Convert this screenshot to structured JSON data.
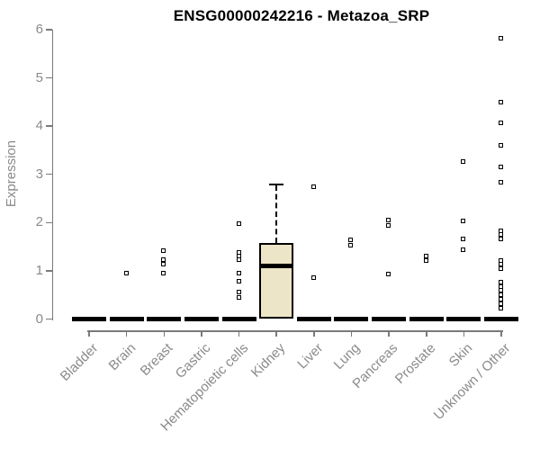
{
  "colors": {
    "box_fill": "#ece5c7",
    "box_border": "#000000",
    "axis": "#7a7a7a",
    "tick_label": "#8a8a8a",
    "title": "#000000",
    "point_border": "#000000"
  },
  "chart_data": {
    "type": "boxplot",
    "title": "ENSG00000242216 - Metazoa_SRP",
    "xlabel": "",
    "ylabel": "Expression",
    "ylim": [
      0,
      6
    ],
    "y_ticks": [
      0,
      1,
      2,
      3,
      4,
      5,
      6
    ],
    "grid": false,
    "x_label_rotation": 45,
    "categories": [
      "Bladder",
      "Brain",
      "Breast",
      "Gastric",
      "Hematopoietic cells",
      "Kidney",
      "Liver",
      "Lung",
      "Pancreas",
      "Prostate",
      "Skin",
      "Unknown / Other"
    ],
    "boxes": [
      {
        "category": "Bladder",
        "q1": 0,
        "median": 0,
        "q3": 0,
        "whisker_low": 0,
        "whisker_high": 0,
        "points": []
      },
      {
        "category": "Brain",
        "q1": 0,
        "median": 0,
        "q3": 0,
        "whisker_low": 0,
        "whisker_high": 0,
        "points": [
          0.95
        ]
      },
      {
        "category": "Breast",
        "q1": 0,
        "median": 0,
        "q3": 0,
        "whisker_low": 0,
        "whisker_high": 0,
        "points": [
          1.4,
          1.22,
          1.13,
          0.95
        ]
      },
      {
        "category": "Gastric",
        "q1": 0,
        "median": 0,
        "q3": 0,
        "whisker_low": 0,
        "whisker_high": 0,
        "points": []
      },
      {
        "category": "Hematopoietic cells",
        "q1": 0,
        "median": 0,
        "q3": 0,
        "whisker_low": 0,
        "whisker_high": 0,
        "points": [
          1.97,
          1.38,
          1.3,
          1.22,
          0.95,
          0.78,
          0.55,
          0.44
        ]
      },
      {
        "category": "Kidney",
        "q1": 0,
        "median": 1.1,
        "q3": 1.58,
        "whisker_low": 0,
        "whisker_high": 2.79,
        "points": []
      },
      {
        "category": "Liver",
        "q1": 0,
        "median": 0,
        "q3": 0,
        "whisker_low": 0,
        "whisker_high": 0,
        "points": [
          2.73,
          0.85
        ]
      },
      {
        "category": "Lung",
        "q1": 0,
        "median": 0,
        "q3": 0,
        "whisker_low": 0,
        "whisker_high": 0,
        "points": [
          1.63,
          1.52
        ]
      },
      {
        "category": "Pancreas",
        "q1": 0,
        "median": 0,
        "q3": 0,
        "whisker_low": 0,
        "whisker_high": 0,
        "points": [
          2.04,
          1.93,
          0.92
        ]
      },
      {
        "category": "Prostate",
        "q1": 0,
        "median": 0,
        "q3": 0,
        "whisker_low": 0,
        "whisker_high": 0,
        "points": [
          1.3,
          1.21
        ]
      },
      {
        "category": "Skin",
        "q1": 0,
        "median": 0,
        "q3": 0,
        "whisker_low": 0,
        "whisker_high": 0,
        "points": [
          3.25,
          2.02,
          1.66,
          1.43
        ]
      },
      {
        "category": "Unknown / Other",
        "q1": 0,
        "median": 0,
        "q3": 0,
        "whisker_low": 0,
        "whisker_high": 0,
        "points": [
          5.82,
          4.48,
          4.06,
          3.59,
          3.14,
          2.82,
          1.82,
          1.74,
          1.66,
          1.2,
          1.12,
          1.04,
          0.76,
          0.67,
          0.58,
          0.49,
          0.4,
          0.31,
          0.22
        ]
      }
    ]
  }
}
